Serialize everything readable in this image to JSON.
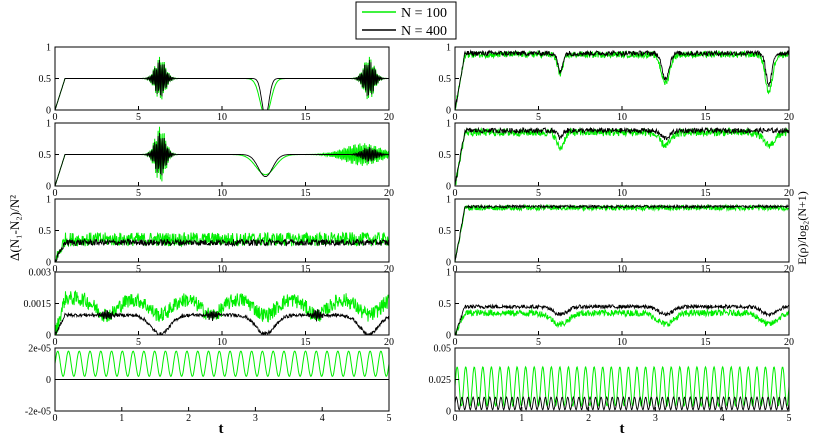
{
  "legend": {
    "entries": [
      {
        "label": "N = 100",
        "color": "#00ee00"
      },
      {
        "label": "N = 400",
        "color": "#000000"
      }
    ],
    "placement": "top-center"
  },
  "labels": {
    "left_ylabel": "Δ(N₁-N₂)/N²",
    "right_ylabel": "E(ρ)/log₂(N+1)",
    "xlabel": "t"
  },
  "colors": {
    "series_n100": "#00ee00",
    "series_n400": "#000000",
    "axis": "#000000"
  },
  "chart_data": [
    {
      "type": "line",
      "column": "left",
      "row": 1,
      "xlim": [
        0,
        20
      ],
      "ylim": [
        0,
        1
      ],
      "xticks": [
        0,
        5,
        10,
        15,
        20
      ],
      "xtick_labels": [
        "0",
        "5",
        "10",
        "15",
        "20"
      ],
      "yticks": [
        0,
        0.5,
        1
      ],
      "ytick_labels": [
        "0",
        "0.5",
        "1"
      ],
      "series": [
        {
          "color": "#00ee00",
          "base": 0.5,
          "rise_to": 0.7,
          "bursts": [
            [
              6.3,
              0.45,
              0.35
            ],
            [
              18.8,
              0.45,
              0.35
            ]
          ],
          "dips": [
            [
              12.6,
              0.45,
              0.6
            ]
          ],
          "noise": 0.0
        },
        {
          "color": "#000000",
          "base": 0.5,
          "rise_to": 0.6,
          "bursts": [
            [
              6.3,
              0.45,
              0.3
            ],
            [
              18.8,
              0.45,
              0.3
            ]
          ],
          "dips": [
            [
              12.6,
              0.3,
              0.6
            ]
          ],
          "noise": 0.0
        }
      ]
    },
    {
      "type": "line",
      "column": "left",
      "row": 2,
      "xlim": [
        0,
        20
      ],
      "ylim": [
        0,
        1
      ],
      "xticks": [
        0,
        5,
        10,
        15,
        20
      ],
      "xtick_labels": [
        "0",
        "5",
        "10",
        "15",
        "20"
      ],
      "yticks": [
        0,
        0.5,
        1
      ],
      "ytick_labels": [
        "0",
        "0.5",
        "1"
      ],
      "series": [
        {
          "color": "#00ee00",
          "base": 0.5,
          "rise_to": 0.7,
          "bursts": [
            [
              6.3,
              0.45,
              0.45
            ],
            [
              18.4,
              1.5,
              0.18
            ]
          ],
          "dips": [
            [
              12.6,
              0.8,
              0.32
            ]
          ],
          "noise": 0.0
        },
        {
          "color": "#000000",
          "base": 0.5,
          "rise_to": 0.6,
          "bursts": [
            [
              6.3,
              0.45,
              0.35
            ],
            [
              18.8,
              0.6,
              0.12
            ]
          ],
          "dips": [
            [
              12.6,
              0.6,
              0.35
            ]
          ],
          "noise": 0.0
        }
      ]
    },
    {
      "type": "line",
      "column": "left",
      "row": 3,
      "xlim": [
        0,
        20
      ],
      "ylim": [
        0,
        1
      ],
      "xticks": [
        0,
        5,
        10,
        15,
        20
      ],
      "xtick_labels": [
        "0",
        "5",
        "10",
        "15",
        "20"
      ],
      "yticks": [
        0,
        0.5,
        1
      ],
      "ytick_labels": [
        "0",
        "0.5",
        "1"
      ],
      "series": [
        {
          "color": "#00ee00",
          "base": 0.36,
          "rise_to": 0.36,
          "bursts": [],
          "dips": [],
          "noise": 0.11
        },
        {
          "color": "#000000",
          "base": 0.31,
          "rise_to": 0.31,
          "bursts": [],
          "dips": [],
          "noise": 0.05
        }
      ]
    },
    {
      "type": "line",
      "column": "left",
      "row": 4,
      "xlim": [
        0,
        20
      ],
      "ylim": [
        0,
        0.003
      ],
      "xticks": [
        0,
        5,
        10,
        15,
        20
      ],
      "xtick_labels": [
        "0",
        "5",
        "10",
        "15",
        "20"
      ],
      "yticks": [
        0,
        0.0015,
        0.003
      ],
      "ytick_labels": [
        "0",
        "0.0015",
        "0.003"
      ],
      "series": [
        {
          "color": "#00ee00",
          "base": 0.00175,
          "rise_to": 0.00175,
          "bursts": [],
          "dips": [
            [
              3.1,
              0.9,
              0.0008
            ],
            [
              6.3,
              0.9,
              0.0008
            ],
            [
              9.4,
              0.9,
              0.0008
            ],
            [
              12.6,
              0.9,
              0.0008
            ],
            [
              15.7,
              0.9,
              0.0008
            ],
            [
              18.8,
              0.9,
              0.0008
            ]
          ],
          "noise": 0.00035
        },
        {
          "color": "#000000",
          "base": 0.00095,
          "rise_to": 0.00095,
          "bursts": [
            [
              3.1,
              0.35,
              0.00025
            ],
            [
              9.4,
              0.35,
              0.00025
            ],
            [
              15.7,
              0.35,
              0.00025
            ]
          ],
          "dips": [
            [
              6.3,
              0.8,
              0.0009
            ],
            [
              12.6,
              0.8,
              0.0009
            ],
            [
              18.8,
              0.8,
              0.0009
            ]
          ],
          "noise": 8e-05
        }
      ]
    },
    {
      "type": "line",
      "column": "left",
      "row": 5,
      "xlim": [
        0,
        5
      ],
      "ylim": [
        -2e-05,
        2e-05
      ],
      "xticks": [
        0,
        1,
        2,
        3,
        4,
        5
      ],
      "xtick_labels": [
        "0",
        "1",
        "2",
        "3",
        "4",
        "5"
      ],
      "yticks": [
        -2e-05,
        0,
        2e-05
      ],
      "ytick_labels": [
        "-2e-05",
        "0",
        "2e-05"
      ],
      "series": [
        {
          "color": "#00ee00",
          "wave": {
            "offset": 1e-05,
            "amp": 8e-06,
            "periods": 31
          }
        },
        {
          "color": "#000000",
          "wave": {
            "offset": 0,
            "amp": 0,
            "periods": 1
          }
        }
      ]
    },
    {
      "type": "line",
      "column": "right",
      "row": 1,
      "xlim": [
        0,
        20
      ],
      "ylim": [
        0,
        1
      ],
      "xticks": [
        0,
        5,
        10,
        15,
        20
      ],
      "xtick_labels": [
        "0",
        "5",
        "10",
        "15",
        "20"
      ],
      "yticks": [
        0,
        0.5,
        1
      ],
      "ytick_labels": [
        "0",
        "0.5",
        "1"
      ],
      "series": [
        {
          "color": "#00ee00",
          "base": 0.88,
          "rise_to": 0.88,
          "bursts": [],
          "dips": [
            [
              6.3,
              0.25,
              0.3
            ],
            [
              12.6,
              0.35,
              0.45
            ],
            [
              18.8,
              0.3,
              0.6
            ]
          ],
          "noise": 0.05
        },
        {
          "color": "#000000",
          "base": 0.9,
          "rise_to": 0.9,
          "bursts": [],
          "dips": [
            [
              6.3,
              0.2,
              0.3
            ],
            [
              12.6,
              0.3,
              0.4
            ],
            [
              18.8,
              0.25,
              0.5
            ]
          ],
          "noise": 0.04
        }
      ]
    },
    {
      "type": "line",
      "column": "right",
      "row": 2,
      "xlim": [
        0,
        20
      ],
      "ylim": [
        0,
        1
      ],
      "xticks": [
        0,
        5,
        10,
        15,
        20
      ],
      "xtick_labels": [
        "0",
        "5",
        "10",
        "15",
        "20"
      ],
      "yticks": [
        0,
        0.5,
        1
      ],
      "ytick_labels": [
        "0",
        "0.5",
        "1"
      ],
      "series": [
        {
          "color": "#00ee00",
          "base": 0.85,
          "rise_to": 0.85,
          "bursts": [],
          "dips": [
            [
              6.3,
              0.3,
              0.25
            ],
            [
              12.6,
              0.5,
              0.2
            ],
            [
              18.8,
              0.5,
              0.2
            ]
          ],
          "noise": 0.06
        },
        {
          "color": "#000000",
          "base": 0.88,
          "rise_to": 0.88,
          "bursts": [],
          "dips": [
            [
              6.3,
              0.2,
              0.12
            ],
            [
              12.6,
              0.4,
              0.12
            ]
          ],
          "noise": 0.04
        }
      ]
    },
    {
      "type": "line",
      "column": "right",
      "row": 3,
      "xlim": [
        0,
        20
      ],
      "ylim": [
        0,
        1
      ],
      "xticks": [
        0,
        5,
        10,
        15,
        20
      ],
      "xtick_labels": [
        "0",
        "5",
        "10",
        "15",
        "20"
      ],
      "yticks": [
        0,
        0.5,
        1
      ],
      "ytick_labels": [
        "0",
        "0.5",
        "1"
      ],
      "series": [
        {
          "color": "#00ee00",
          "base": 0.86,
          "rise_to": 0.86,
          "bursts": [],
          "dips": [],
          "noise": 0.04
        },
        {
          "color": "#000000",
          "base": 0.88,
          "rise_to": 0.88,
          "bursts": [],
          "dips": [],
          "noise": 0.02
        }
      ]
    },
    {
      "type": "line",
      "column": "right",
      "row": 4,
      "xlim": [
        0,
        20
      ],
      "ylim": [
        0,
        1
      ],
      "xticks": [
        0,
        5,
        10,
        15,
        20
      ],
      "xtick_labels": [
        "0",
        "5",
        "10",
        "15",
        "20"
      ],
      "yticks": [
        0,
        0.5,
        1
      ],
      "ytick_labels": [
        "0",
        "0.5",
        "1"
      ],
      "series": [
        {
          "color": "#00ee00",
          "base": 0.35,
          "rise_to": 0.35,
          "bursts": [],
          "dips": [
            [
              6.3,
              0.7,
              0.18
            ],
            [
              12.6,
              0.7,
              0.18
            ],
            [
              18.8,
              0.7,
              0.18
            ]
          ],
          "noise": 0.05
        },
        {
          "color": "#000000",
          "base": 0.45,
          "rise_to": 0.45,
          "bursts": [],
          "dips": [
            [
              6.3,
              0.6,
              0.12
            ],
            [
              12.6,
              0.6,
              0.12
            ],
            [
              18.8,
              0.6,
              0.12
            ]
          ],
          "noise": 0.03
        }
      ]
    },
    {
      "type": "line",
      "column": "right",
      "row": 5,
      "xlim": [
        0,
        5
      ],
      "ylim": [
        0,
        0.05
      ],
      "xticks": [
        0,
        1,
        2,
        3,
        4,
        5
      ],
      "xtick_labels": [
        "0",
        "1",
        "2",
        "3",
        "4",
        "5"
      ],
      "yticks": [
        0,
        0.025,
        0.05
      ],
      "ytick_labels": [
        "0",
        "0.025",
        "0.05"
      ],
      "series": [
        {
          "color": "#00ee00",
          "wave": {
            "offset": 0.0195,
            "amp": 0.0155,
            "periods": 39
          }
        },
        {
          "color": "#000000",
          "wave": {
            "offset": 0.006,
            "amp": 0.005,
            "periods": 60
          }
        }
      ]
    }
  ]
}
